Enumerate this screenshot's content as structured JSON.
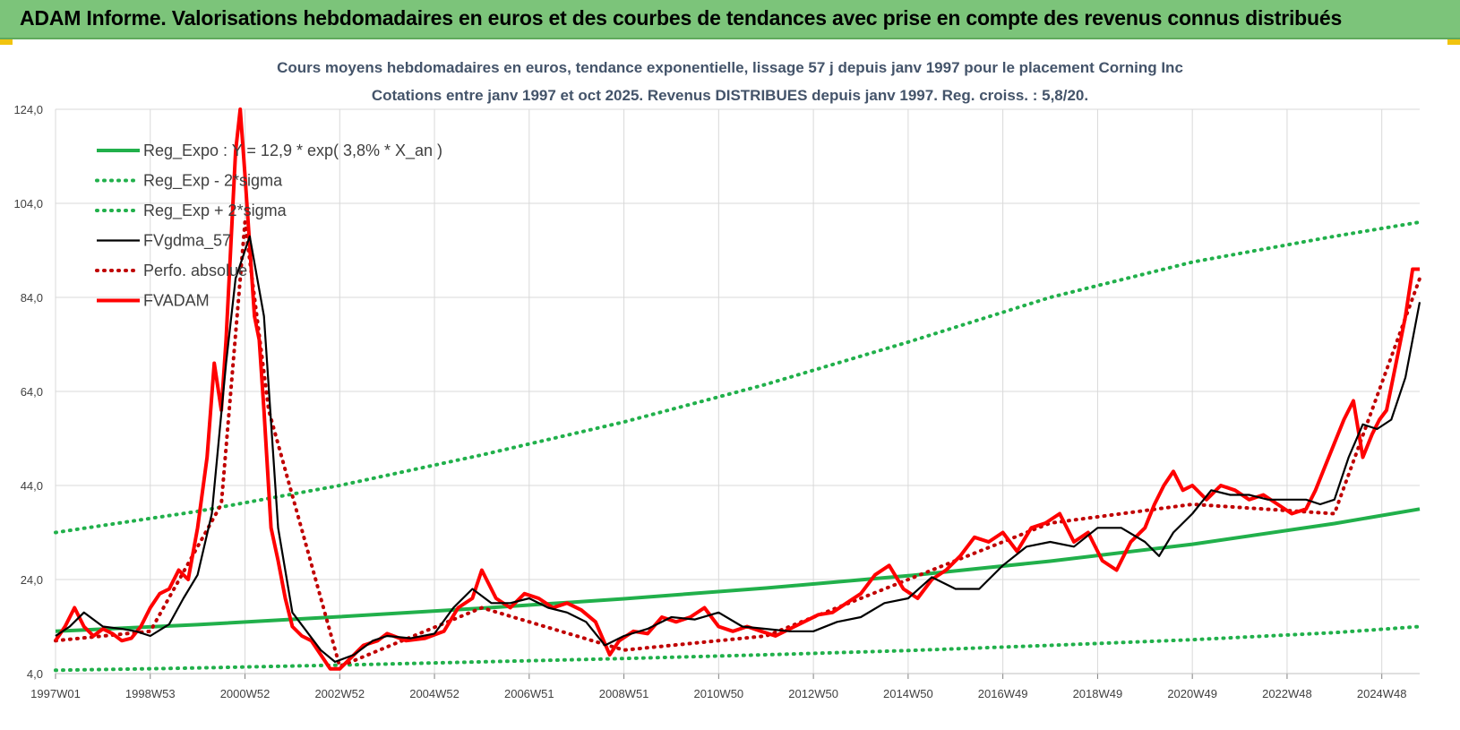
{
  "banner": {
    "title": "ADAM Informe. Valorisations hebdomadaires en euros et des courbes de tendances avec prise en compte des revenus connus distribués"
  },
  "colors": {
    "banner_bg": "#7cc47a",
    "reg_expo": "#21b04b",
    "sigma": "#21b04b",
    "fvgdma": "#000000",
    "perfo": "#c00000",
    "fvadam": "#ff0000",
    "grid": "#d9d9d9",
    "title_text": "#44546a"
  },
  "chart_data": {
    "type": "line",
    "title": "Cours moyens hebdomadaires en euros, tendance exponentielle, lissage 57 j depuis janv 1997 pour le placement Corning Inc",
    "subtitle": "Cotations entre janv 1997 et oct 2025. Revenus DISTRIBUES depuis janv 1997. Reg. croiss. : 5,8/20.",
    "xlabel": "",
    "ylabel": "",
    "xlim": [
      1997.0,
      2025.8
    ],
    "ylim": [
      4,
      124
    ],
    "y_ticks": [
      "4,0",
      "24,0",
      "44,0",
      "64,0",
      "84,0",
      "104,0",
      "124,0"
    ],
    "x_ticks": [
      {
        "label": "1997W01",
        "x": 1997.0
      },
      {
        "label": "1998W53",
        "x": 1999.0
      },
      {
        "label": "2000W52",
        "x": 2001.0
      },
      {
        "label": "2002W52",
        "x": 2003.0
      },
      {
        "label": "2004W52",
        "x": 2005.0
      },
      {
        "label": "2006W51",
        "x": 2007.0
      },
      {
        "label": "2008W51",
        "x": 2009.0
      },
      {
        "label": "2010W50",
        "x": 2011.0
      },
      {
        "label": "2012W50",
        "x": 2013.0
      },
      {
        "label": "2014W50",
        "x": 2015.0
      },
      {
        "label": "2016W49",
        "x": 2017.0
      },
      {
        "label": "2018W49",
        "x": 2019.0
      },
      {
        "label": "2020W49",
        "x": 2021.0
      },
      {
        "label": "2022W48",
        "x": 2023.0
      },
      {
        "label": "2024W48",
        "x": 2025.0
      }
    ],
    "grid": true,
    "legend_position": "top-left",
    "series": [
      {
        "name": "Reg_Expo : Y = 12,9 * exp( 3,8% *  X_an )",
        "style": "solid-thick",
        "color": "#21b04b",
        "x": [
          1997.0,
          2000.0,
          2003.0,
          2006.0,
          2009.0,
          2012.0,
          2015.0,
          2018.0,
          2021.0,
          2024.0,
          2025.8
        ],
        "values": [
          13.0,
          14.4,
          16.1,
          17.9,
          19.9,
          22.2,
          24.8,
          27.9,
          31.5,
          35.9,
          39.0
        ]
      },
      {
        "name": "Reg_Exp - 2*sigma",
        "style": "dotted",
        "color": "#21b04b",
        "x": [
          1997.0,
          2000.0,
          2003.0,
          2006.0,
          2009.0,
          2012.0,
          2015.0,
          2018.0,
          2021.0,
          2024.0,
          2025.8
        ],
        "values": [
          4.7,
          5.2,
          5.8,
          6.5,
          7.2,
          8.0,
          8.9,
          10.0,
          11.2,
          12.7,
          14.0
        ]
      },
      {
        "name": "Reg_Exp + 2*sigma",
        "style": "dotted",
        "color": "#21b04b",
        "x": [
          1997.0,
          2000.0,
          2003.0,
          2006.0,
          2009.0,
          2012.0,
          2015.0,
          2018.0,
          2021.0,
          2024.0,
          2025.8
        ],
        "values": [
          34.0,
          38.5,
          44.0,
          50.5,
          57.5,
          65.5,
          74.5,
          84.0,
          91.5,
          97.0,
          100.0
        ]
      },
      {
        "name": "FVgdma_57",
        "style": "solid",
        "color": "#000000",
        "x": [
          1997.0,
          1997.3,
          1997.6,
          1998.0,
          1998.4,
          1998.7,
          1999.0,
          1999.4,
          1999.7,
          2000.0,
          2000.3,
          2000.6,
          2000.8,
          2001.1,
          2001.4,
          2001.7,
          2002.0,
          2002.3,
          2002.6,
          2002.9,
          2003.3,
          2003.7,
          2004.0,
          2004.5,
          2005.0,
          2005.4,
          2005.8,
          2006.2,
          2006.6,
          2007.0,
          2007.4,
          2007.8,
          2008.2,
          2008.6,
          2009.0,
          2009.5,
          2010.0,
          2010.5,
          2011.0,
          2011.5,
          2012.0,
          2012.5,
          2013.0,
          2013.5,
          2014.0,
          2014.5,
          2015.0,
          2015.5,
          2016.0,
          2016.5,
          2017.0,
          2017.5,
          2018.0,
          2018.5,
          2019.0,
          2019.5,
          2020.0,
          2020.3,
          2020.6,
          2021.0,
          2021.4,
          2021.8,
          2022.2,
          2022.6,
          2023.0,
          2023.4,
          2023.7,
          2024.0,
          2024.3,
          2024.6,
          2024.9,
          2025.2,
          2025.5,
          2025.8
        ],
        "values": [
          12.0,
          14.0,
          17.0,
          14.0,
          13.5,
          13.0,
          12.0,
          14.5,
          20.0,
          25.0,
          38.0,
          70.0,
          88.0,
          97.0,
          80.0,
          35.0,
          17.0,
          13.0,
          9.0,
          6.5,
          8.0,
          11.0,
          12.0,
          11.5,
          12.5,
          18.0,
          22.0,
          19.0,
          19.0,
          20.0,
          18.0,
          17.0,
          15.0,
          10.0,
          12.0,
          13.5,
          16.0,
          15.5,
          17.0,
          14.0,
          13.5,
          13.0,
          13.0,
          15.0,
          16.0,
          19.0,
          20.0,
          24.5,
          22.0,
          22.0,
          27.0,
          31.0,
          32.0,
          31.0,
          35.0,
          35.0,
          32.0,
          29.0,
          34.0,
          38.0,
          43.0,
          42.0,
          42.0,
          41.0,
          41.0,
          41.0,
          40.0,
          41.0,
          50.0,
          57.0,
          56.0,
          58.0,
          67.0,
          83.0
        ]
      },
      {
        "name": "Perfo. absolue",
        "style": "dotted",
        "color": "#c00000",
        "x": [
          1997.0,
          1999.0,
          2000.5,
          2001.0,
          2001.5,
          2003.0,
          2006.0,
          2009.0,
          2012.0,
          2015.0,
          2018.0,
          2021.0,
          2024.0,
          2025.8
        ],
        "values": [
          11.0,
          13.0,
          40.0,
          100.0,
          60.0,
          5.5,
          18.0,
          9.0,
          12.0,
          24.0,
          36.0,
          40.0,
          38.0,
          88.0
        ]
      },
      {
        "name": "FVADAM",
        "style": "solid-thick",
        "color": "#ff0000",
        "x": [
          1997.0,
          1997.2,
          1997.4,
          1997.6,
          1997.8,
          1998.0,
          1998.2,
          1998.4,
          1998.6,
          1998.8,
          1999.0,
          1999.2,
          1999.4,
          1999.6,
          1999.8,
          2000.0,
          2000.2,
          2000.35,
          2000.5,
          2000.6,
          2000.7,
          2000.8,
          2000.9,
          2001.0,
          2001.1,
          2001.2,
          2001.3,
          2001.4,
          2001.55,
          2001.7,
          2001.85,
          2002.0,
          2002.2,
          2002.4,
          2002.6,
          2002.8,
          2003.0,
          2003.2,
          2003.5,
          2003.8,
          2004.0,
          2004.4,
          2004.8,
          2005.2,
          2005.5,
          2005.8,
          2006.0,
          2006.3,
          2006.6,
          2006.9,
          2007.2,
          2007.5,
          2007.8,
          2008.1,
          2008.4,
          2008.7,
          2008.9,
          2009.2,
          2009.5,
          2009.8,
          2010.1,
          2010.4,
          2010.7,
          2011.0,
          2011.3,
          2011.6,
          2011.9,
          2012.2,
          2012.5,
          2012.8,
          2013.1,
          2013.4,
          2013.7,
          2014.0,
          2014.3,
          2014.6,
          2014.9,
          2015.2,
          2015.5,
          2015.8,
          2016.1,
          2016.4,
          2016.7,
          2017.0,
          2017.3,
          2017.6,
          2017.9,
          2018.2,
          2018.5,
          2018.8,
          2019.1,
          2019.4,
          2019.7,
          2020.0,
          2020.2,
          2020.4,
          2020.6,
          2020.8,
          2021.0,
          2021.3,
          2021.6,
          2021.9,
          2022.2,
          2022.5,
          2022.8,
          2023.1,
          2023.4,
          2023.6,
          2023.8,
          2024.0,
          2024.2,
          2024.4,
          2024.6,
          2024.8,
          2024.95,
          2025.1,
          2025.3,
          2025.5,
          2025.65,
          2025.8
        ],
        "values": [
          11.0,
          14.0,
          18.0,
          14.0,
          12.0,
          13.5,
          12.5,
          11.0,
          11.5,
          14.0,
          18.0,
          21.0,
          22.0,
          26.0,
          24.0,
          35.0,
          50.0,
          70.0,
          60.0,
          75.0,
          95.0,
          115.0,
          124.0,
          110.0,
          95.0,
          80.0,
          75.0,
          60.0,
          35.0,
          28.0,
          20.0,
          14.0,
          12.0,
          11.0,
          8.0,
          5.0,
          5.0,
          7.0,
          10.0,
          11.0,
          12.5,
          11.0,
          11.5,
          13.0,
          18.0,
          20.0,
          26.0,
          20.0,
          18.0,
          21.0,
          20.0,
          18.0,
          19.0,
          17.5,
          15.0,
          8.0,
          11.0,
          13.0,
          12.5,
          16.0,
          15.0,
          16.0,
          18.0,
          14.0,
          13.0,
          14.0,
          13.0,
          12.0,
          13.5,
          15.0,
          16.5,
          17.0,
          19.0,
          21.0,
          25.0,
          27.0,
          22.0,
          20.0,
          24.0,
          26.0,
          29.0,
          33.0,
          32.0,
          34.0,
          30.0,
          35.0,
          36.0,
          38.0,
          32.0,
          34.0,
          28.0,
          26.0,
          32.0,
          35.0,
          40.0,
          44.0,
          47.0,
          43.0,
          44.0,
          41.0,
          44.0,
          43.0,
          41.0,
          42.0,
          40.0,
          38.0,
          39.0,
          43.0,
          48.0,
          53.0,
          58.0,
          62.0,
          50.0,
          55.0,
          58.0,
          60.0,
          70.0,
          80.0,
          90.0,
          90.0
        ]
      }
    ]
  }
}
